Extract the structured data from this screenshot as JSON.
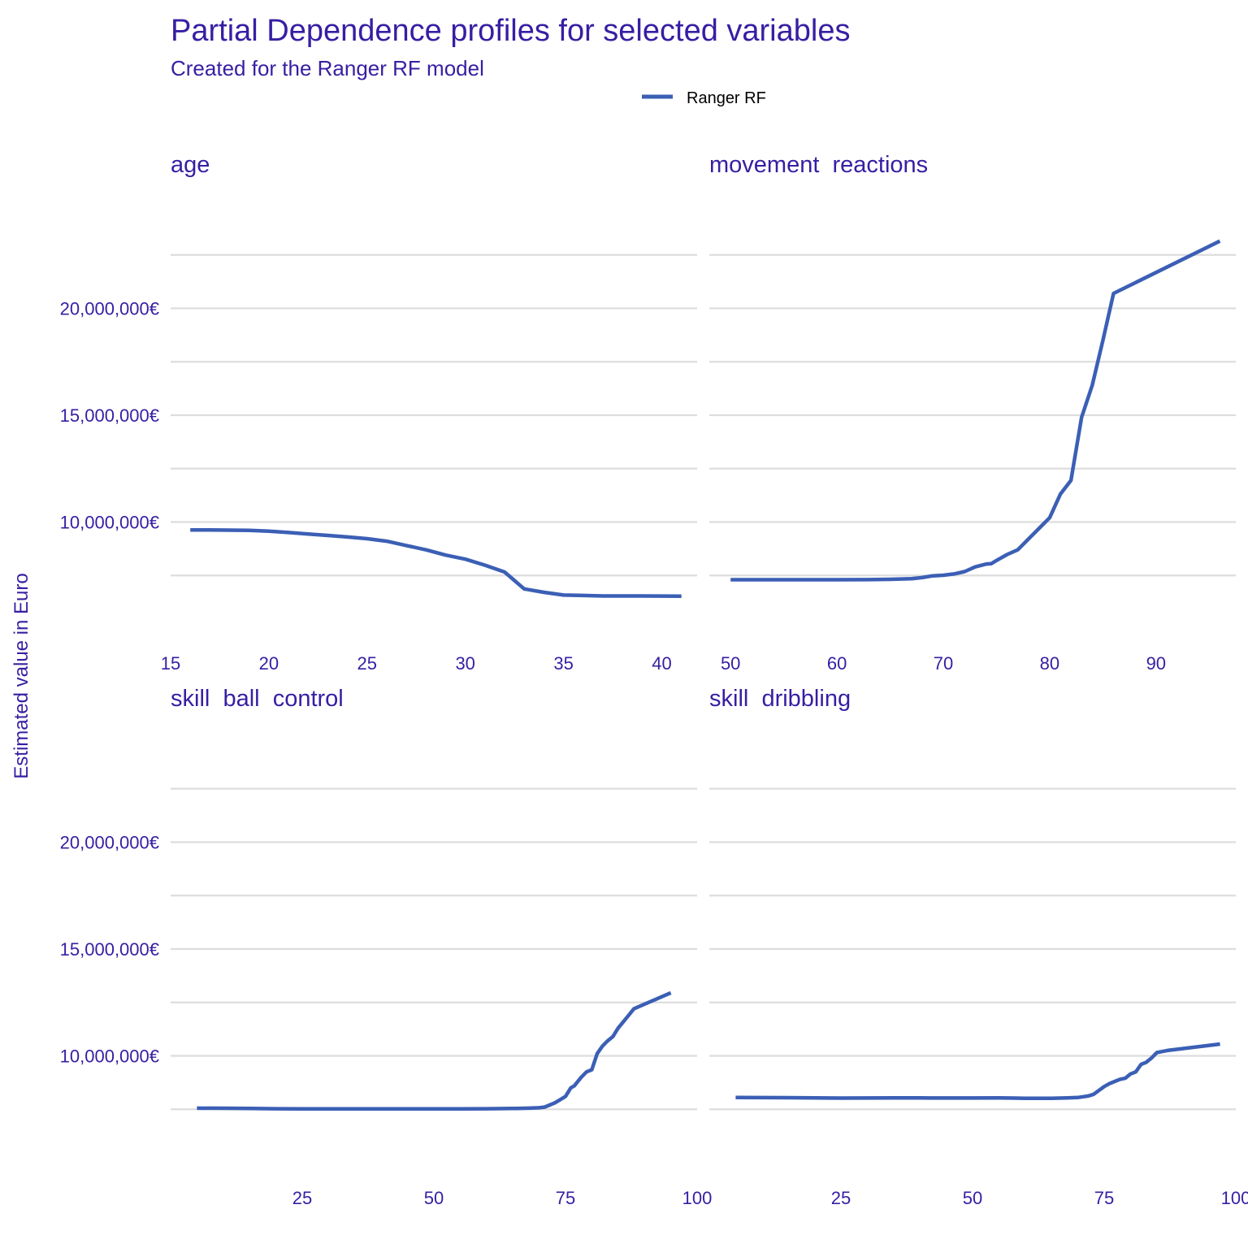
{
  "chart_data": {
    "type": "line",
    "title": "Partial Dependence profiles for selected variables",
    "subtitle": "Created for the Ranger RF model",
    "ylabel": "Estimated value in Euro",
    "y_ticks": [
      10000000,
      15000000,
      20000000
    ],
    "y_tick_labels": [
      "10,000,000€",
      "15,000,000€",
      "20,000,000€"
    ],
    "ylim": [
      4200000,
      25800000
    ],
    "legend": {
      "position": "top",
      "entries": [
        {
          "name": "Ranger RF",
          "color": "#3b5fb5"
        }
      ]
    },
    "series_color": "#3b5fb5",
    "grid": true,
    "panels": [
      {
        "strip": "age",
        "xlim": [
          15,
          41.8
        ],
        "x_ticks": [
          15,
          20,
          25,
          30,
          35,
          40
        ],
        "x_tick_labels": [
          "15",
          "20",
          "25",
          "30",
          "35",
          "40"
        ],
        "series": [
          {
            "name": "Ranger RF",
            "x": [
              16,
              17,
              18,
              19,
              20,
              21,
              22,
              23,
              24,
              25,
              26,
              27,
              28,
              29,
              30,
              31,
              32,
              33,
              34,
              35,
              36,
              37,
              38,
              39,
              40,
              41
            ],
            "y": [
              9630000,
              9625000,
              9620000,
              9610000,
              9570000,
              9510000,
              9440000,
              9370000,
              9300000,
              9220000,
              9100000,
              8900000,
              8700000,
              8450000,
              8260000,
              7980000,
              7660000,
              6870000,
              6710000,
              6580000,
              6560000,
              6540000,
              6540000,
              6540000,
              6535000,
              6530000
            ]
          }
        ]
      },
      {
        "strip": "movement  reactions",
        "xlim": [
          48,
          97.5
        ],
        "x_ticks": [
          50,
          60,
          70,
          80,
          90
        ],
        "x_tick_labels": [
          "50",
          "60",
          "70",
          "80",
          "90"
        ],
        "series": [
          {
            "name": "Ranger RF",
            "x": [
              50,
              55,
              60,
              63,
              65,
              67,
              68,
              69,
              70,
              71,
              72,
              73,
              74,
              74.5,
              75,
              76,
              77,
              78,
              79,
              80,
              81,
              82,
              83,
              84,
              85,
              86,
              96
            ],
            "y": [
              7300000,
              7300000,
              7300000,
              7305000,
              7320000,
              7350000,
              7400000,
              7480000,
              7510000,
              7570000,
              7680000,
              7900000,
              8030000,
              8050000,
              8200000,
              8480000,
              8700000,
              9200000,
              9700000,
              10200000,
              11300000,
              11950000,
              14900000,
              16400000,
              18500000,
              20700000,
              23150000
            ]
          }
        ]
      },
      {
        "strip": "skill  ball  control",
        "xlim": [
          0,
          100
        ],
        "x_ticks": [
          25,
          50,
          75,
          100
        ],
        "x_tick_labels": [
          "25",
          "50",
          "75",
          "100"
        ],
        "series": [
          {
            "name": "Ranger RF",
            "x": [
              5,
              10,
              15,
              20,
              25,
              30,
              35,
              40,
              45,
              50,
              55,
              60,
              65,
              68,
              70,
              71,
              72,
              73,
              74,
              75,
              76,
              76.7,
              77,
              78,
              79,
              80,
              81,
              82,
              83,
              84,
              85,
              86,
              87,
              88,
              95
            ],
            "y": [
              7550000,
              7545000,
              7535000,
              7525000,
              7520000,
              7520000,
              7520000,
              7520000,
              7520000,
              7520000,
              7520000,
              7525000,
              7535000,
              7550000,
              7570000,
              7600000,
              7700000,
              7800000,
              7950000,
              8100000,
              8500000,
              8600000,
              8700000,
              9000000,
              9250000,
              9350000,
              10100000,
              10450000,
              10700000,
              10900000,
              11300000,
              11600000,
              11900000,
              12200000,
              12950000
            ]
          }
        ]
      },
      {
        "strip": "skill  dribbling",
        "xlim": [
          0,
          100
        ],
        "x_ticks": [
          25,
          50,
          75,
          100
        ],
        "x_tick_labels": [
          "25",
          "50",
          "75",
          "100"
        ],
        "series": [
          {
            "name": "Ranger RF",
            "x": [
              5,
              10,
              15,
              20,
              25,
              30,
              35,
              40,
              45,
              50,
              55,
              58,
              60,
              65,
              68,
              70,
              72,
              73,
              74,
              75,
              76,
              77,
              78,
              79,
              80,
              81,
              82,
              83,
              84,
              85,
              86,
              87,
              97
            ],
            "y": [
              8050000,
              8045000,
              8040000,
              8035000,
              8020000,
              8025000,
              8030000,
              8030000,
              8025000,
              8025000,
              8030000,
              8020000,
              8010000,
              8010000,
              8030000,
              8050000,
              8120000,
              8200000,
              8380000,
              8560000,
              8700000,
              8800000,
              8900000,
              8950000,
              9150000,
              9250000,
              9600000,
              9700000,
              9900000,
              10150000,
              10200000,
              10250000,
              10550000
            ]
          }
        ]
      }
    ]
  }
}
